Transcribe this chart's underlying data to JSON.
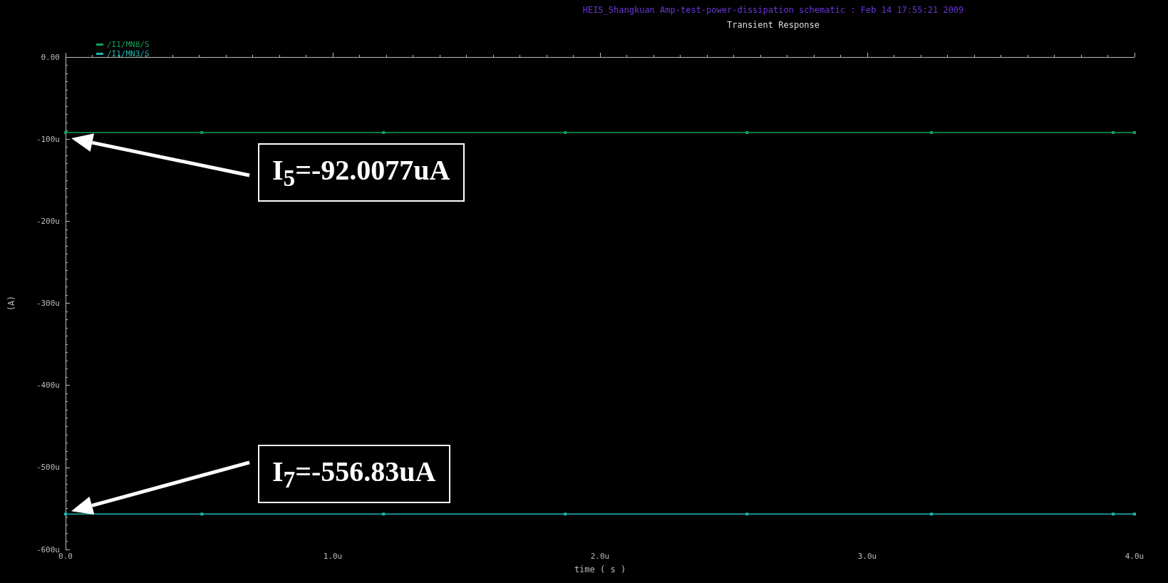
{
  "chart_data": {
    "type": "line",
    "title": "Transient Response",
    "subtitle": "HEIS_Shangkuan Amp-test-power-dissipation schematic : Feb 14 17:55:21 2009",
    "xlabel": "time ( s )",
    "ylabel": "(A)",
    "x": [
      0,
      0.51,
      1.19,
      1.87,
      2.55,
      3.24,
      3.92,
      4
    ],
    "series": [
      {
        "name": "/I1/MN8/S",
        "color": "#12a05a",
        "values": [
          -92.0077,
          -92.0077,
          -92.0077,
          -92.0077,
          -92.0077,
          -92.0077,
          -92.0077,
          -92.0077
        ]
      },
      {
        "name": "/I1/MN3/S",
        "color": "#1fb5b0",
        "values": [
          -556.83,
          -556.83,
          -556.83,
          -556.83,
          -556.83,
          -556.83,
          -556.83,
          -556.83
        ]
      }
    ],
    "xlim": [
      0,
      4
    ],
    "xticks": [
      {
        "value": 0,
        "label": "0.0"
      },
      {
        "value": 1,
        "label": "1.0u"
      },
      {
        "value": 2,
        "label": "2.0u"
      },
      {
        "value": 3,
        "label": "3.0u"
      },
      {
        "value": 4,
        "label": "4.0u"
      }
    ],
    "ylim": [
      -600,
      0
    ],
    "yticks": [
      {
        "value": 0,
        "label": "0.00"
      },
      {
        "value": -100,
        "label": "-100u"
      },
      {
        "value": -200,
        "label": "-200u"
      },
      {
        "value": -300,
        "label": "-300u"
      },
      {
        "value": -400,
        "label": "-400u"
      },
      {
        "value": -500,
        "label": "-500u"
      },
      {
        "value": -600,
        "label": "-600u"
      }
    ],
    "annotations": [
      "I$_{5}$=-92.0077uA",
      "I$_{7}$=-556.83uA"
    ],
    "grid": false,
    "legend": "top left",
    "marker": "square",
    "line_style": "solid"
  }
}
